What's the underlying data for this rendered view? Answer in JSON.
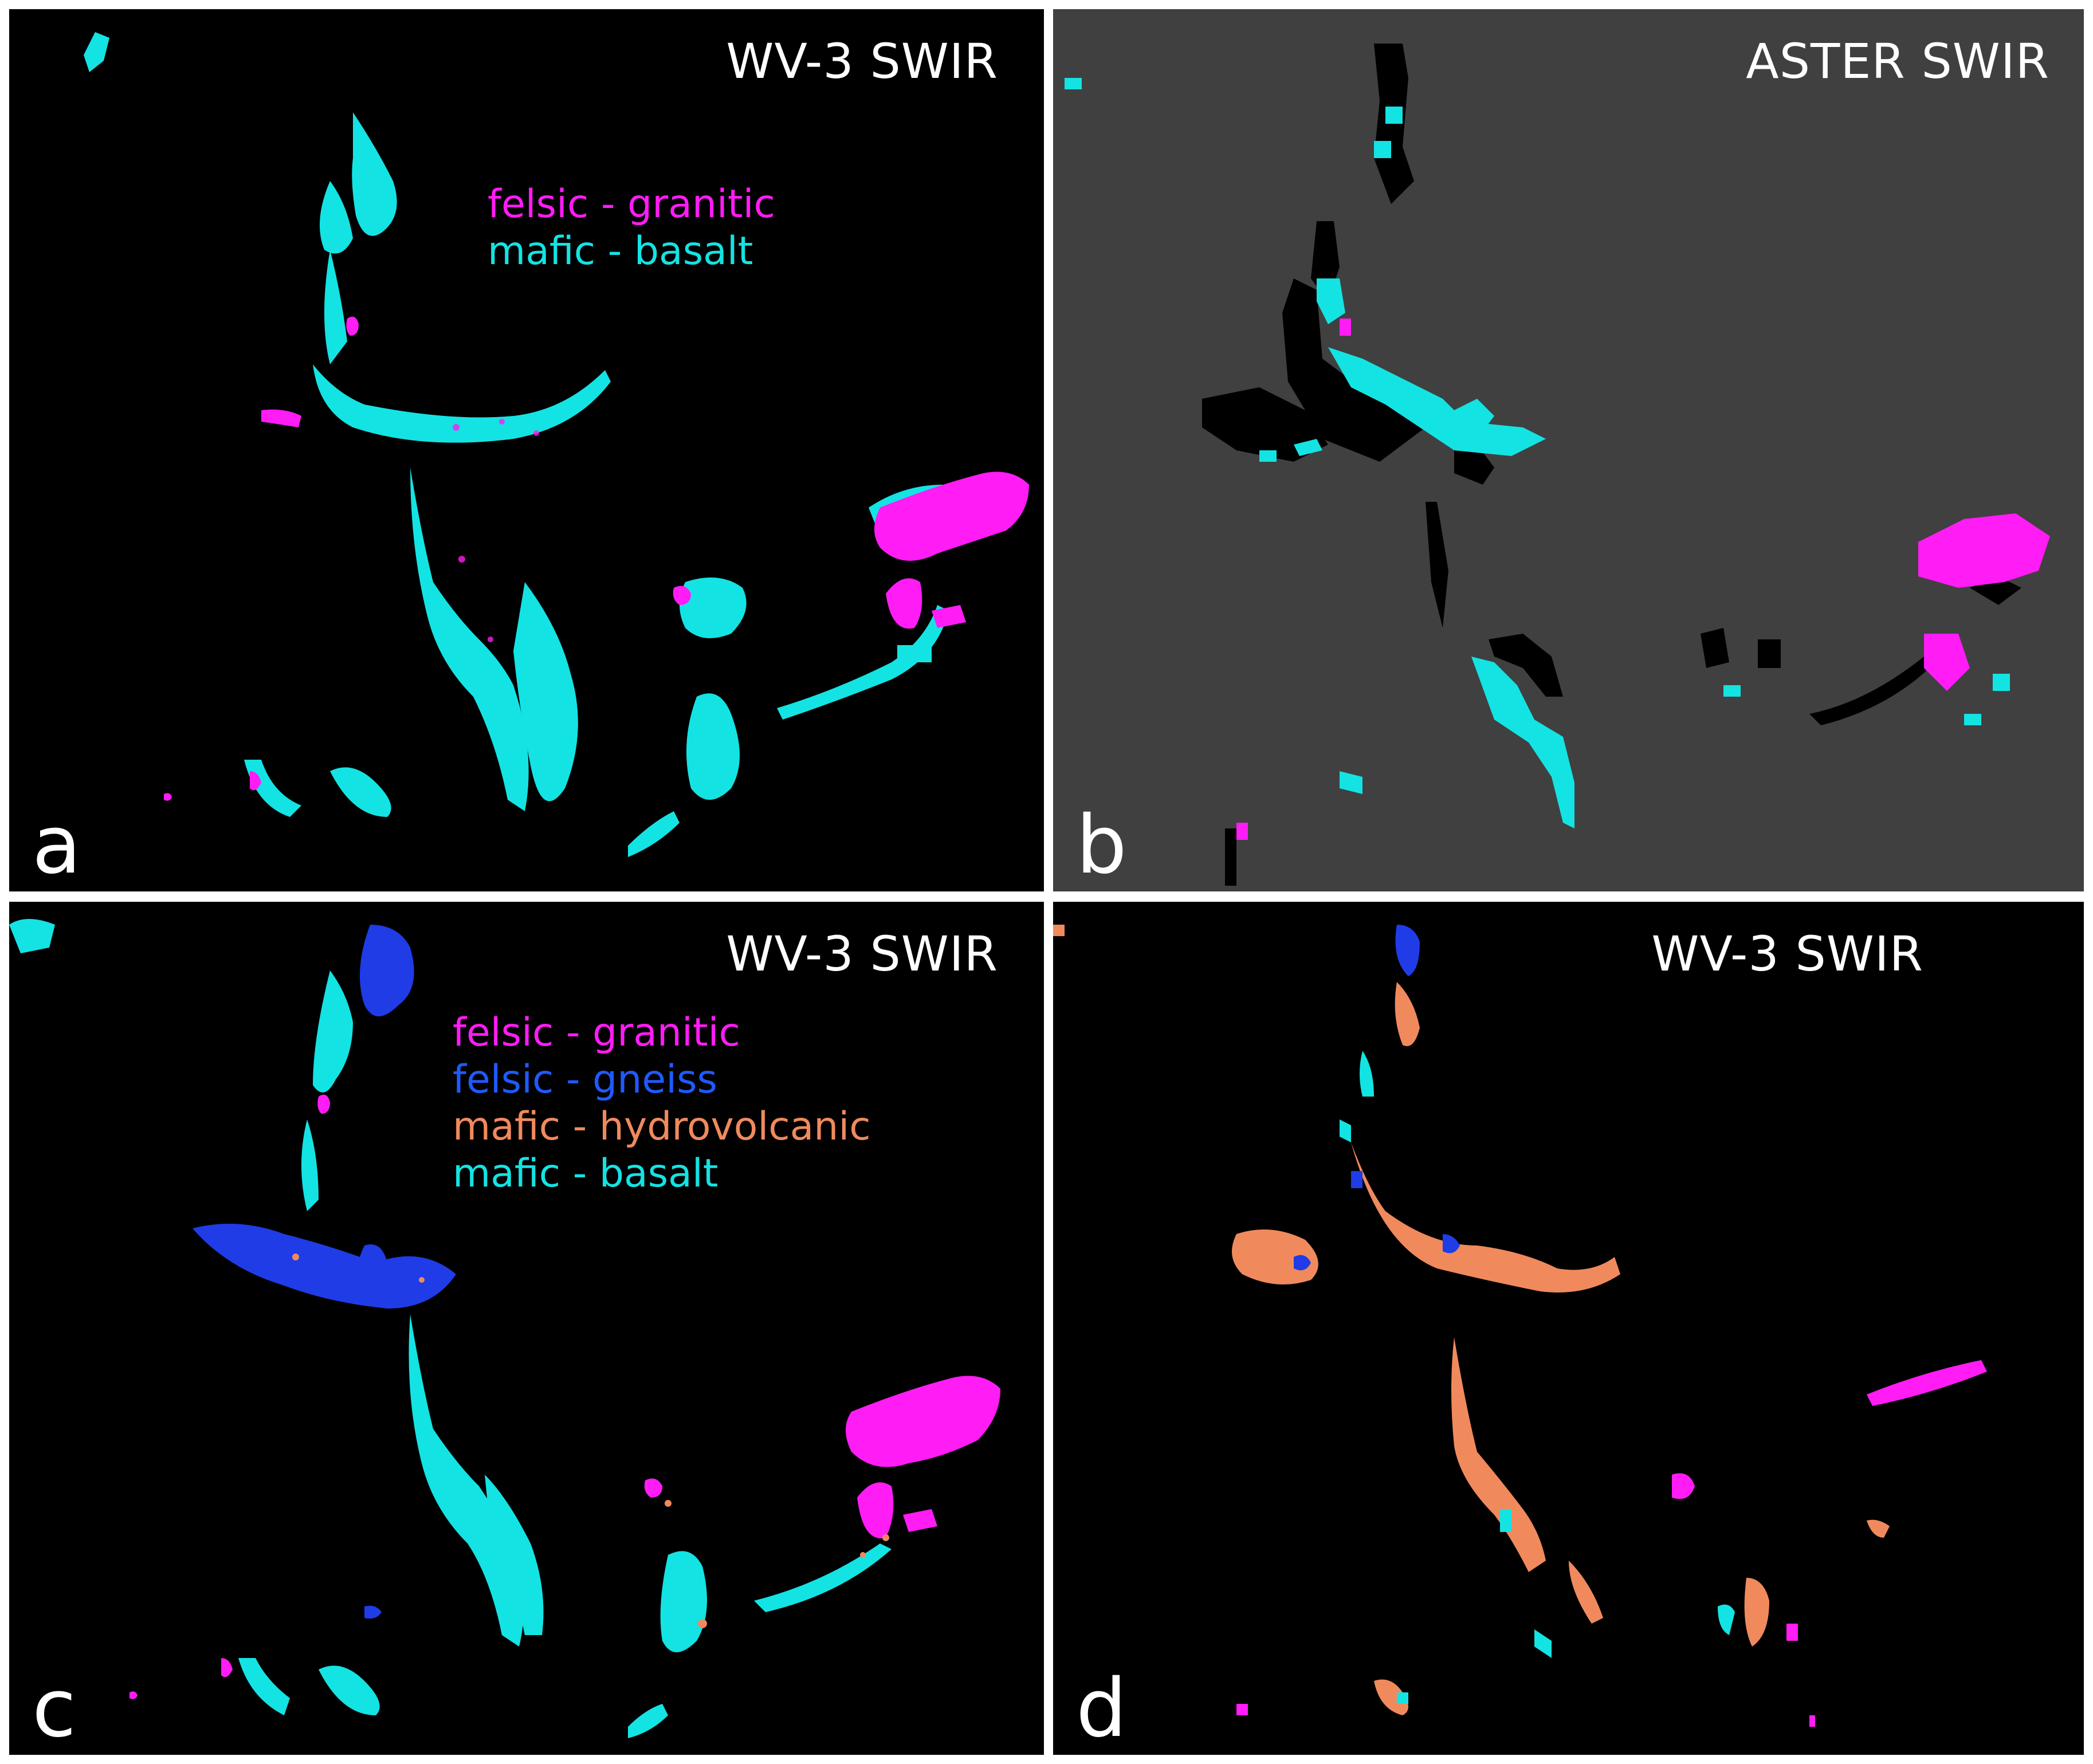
{
  "colors": {
    "felsic_granitic": "#ff1cf5",
    "felsic_gneiss": "#1f3ce6",
    "mafic_hydrovolcanic": "#f08a5d",
    "mafic_basalt": "#14e3e3",
    "background_wv3": "#000000",
    "background_aster": "#404040"
  },
  "panels": {
    "a": {
      "letter": "a",
      "title": "WV-3 SWIR",
      "legend": [
        "felsic - granitic",
        "mafic - basalt"
      ]
    },
    "b": {
      "letter": "b",
      "title": "ASTER SWIR"
    },
    "c": {
      "letter": "c",
      "title": "WV-3 SWIR",
      "legend": [
        "felsic - granitic",
        "felsic - gneiss",
        "mafic - hydrovolcanic",
        "mafic - basalt"
      ]
    },
    "d": {
      "letter": "d",
      "title": "WV-3 SWIR"
    }
  }
}
